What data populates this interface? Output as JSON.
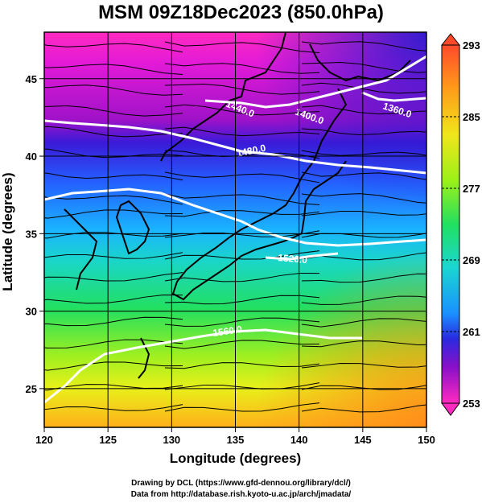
{
  "title": "MSM 09Z18Dec2023 (850.0hPa)",
  "x_axis": {
    "label": "Longitude (degrees)",
    "range": [
      120,
      150
    ],
    "ticks": [
      "120",
      "125",
      "130",
      "135",
      "140",
      "145",
      "150"
    ]
  },
  "y_axis": {
    "label": "Latitude  (degrees)",
    "range": [
      22.5,
      48
    ],
    "ticks": [
      "25",
      "30",
      "35",
      "40",
      "45"
    ]
  },
  "colorbar": {
    "ticks": [
      "293",
      "285",
      "277",
      "269",
      "261",
      "253"
    ],
    "palette": [
      "#ff2a55",
      "#ff5a2a",
      "#ff9a1a",
      "#ffd21a",
      "#c8f01a",
      "#6cf025",
      "#22e060",
      "#1ad6c8",
      "#1aa8ff",
      "#2460ff",
      "#2a1ad0",
      "#8a10c8",
      "#e21ad8",
      "#ff2ac0"
    ]
  },
  "contours": [
    {
      "label": "1360.0",
      "color": "#ffffff"
    },
    {
      "label": "1400.0",
      "color": "#ffffff"
    },
    {
      "label": "1440.0",
      "color": "#ffffff"
    },
    {
      "label": "1480.0",
      "color": "#ffffff"
    },
    {
      "label": "1520.0",
      "color": "#ffffff"
    },
    {
      "label": "1560.0",
      "color": "#ffffff"
    }
  ],
  "credits": {
    "line1": "Drawing by DCL (https://www.gfd-dennou.org/library/dcl/)",
    "line2": "Data from http://database.rish.kyoto-u.ac.jp/arch/jmadata/"
  }
}
